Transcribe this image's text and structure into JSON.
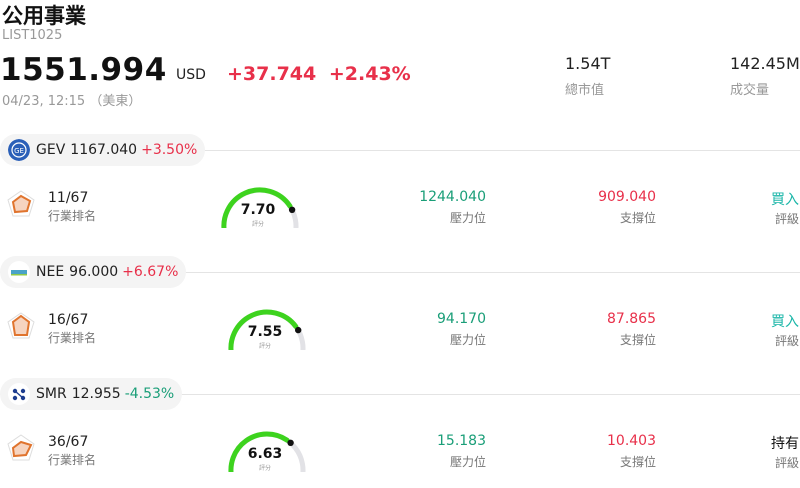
{
  "header": {
    "title": "公用事業",
    "code": "LIST1025",
    "price": "1551.994",
    "currency": "USD",
    "change": "+37.744",
    "change_pct": "+2.43%",
    "time": "04/23, 12:15 （美東）",
    "market_cap_value": "1.54T",
    "market_cap_label": "總市值",
    "volume_value": "142.45M",
    "volume_label": "成交量"
  },
  "stocks": [
    {
      "ticker": "GEV",
      "price": "1167.040",
      "change": "+3.50%",
      "direction": "up",
      "rank": "11/67",
      "rank_label": "行業排名",
      "score": "7.70",
      "score_label": "評分",
      "resistance": "1244.040",
      "resistance_label": "壓力位",
      "support": "909.040",
      "support_label": "支撐位",
      "rating": "買入",
      "rating_label": "評級",
      "rating_color": "#1ab6a8"
    },
    {
      "ticker": "NEE",
      "price": "96.000",
      "change": "+6.67%",
      "direction": "up",
      "rank": "16/67",
      "rank_label": "行業排名",
      "score": "7.55",
      "score_label": "評分",
      "resistance": "94.170",
      "resistance_label": "壓力位",
      "support": "87.865",
      "support_label": "支撐位",
      "rating": "買入",
      "rating_label": "評級",
      "rating_color": "#1ab6a8"
    },
    {
      "ticker": "SMR",
      "price": "12.955",
      "change": "-4.53%",
      "direction": "down",
      "rank": "36/67",
      "rank_label": "行業排名",
      "score": "6.63",
      "score_label": "評分",
      "resistance": "15.183",
      "resistance_label": "壓力位",
      "support": "10.403",
      "support_label": "支撐位",
      "rating": "持有",
      "rating_label": "評級",
      "rating_color": "#111111"
    }
  ],
  "colors": {
    "up": "#e8304a",
    "down": "#1a9e78",
    "gauge_fill": "#3dd31e",
    "gauge_track": "#e2e2e6",
    "rank_icon": "#e0742e"
  },
  "icons": {
    "GEV": "ge-vernova-logo",
    "NEE": "nextera-logo",
    "SMR": "nuscale-logo",
    "rank": "pentagon-radar-icon"
  }
}
